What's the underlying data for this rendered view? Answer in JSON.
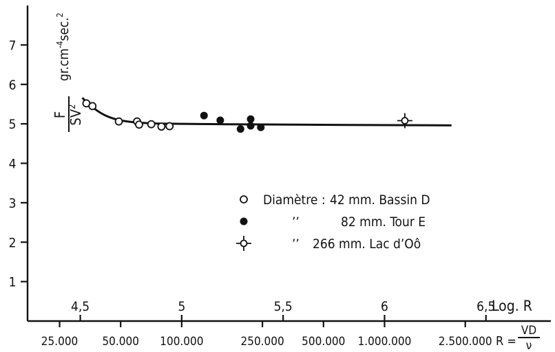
{
  "chart_data": {
    "type": "scatter",
    "title": "",
    "ylabel": {
      "fraction_num": "F",
      "fraction_den": "SV",
      "fraction_den_sup": "2",
      "units": "gr.cm",
      "units_sup1": "-4",
      "units_mid": "sec.",
      "units_sup2": "2"
    },
    "x_top_label": "Log. R",
    "x_bottom_label": {
      "prefix": "R =",
      "num": "VD",
      "den": "ν"
    },
    "xlim": [
      4.24,
      6.82
    ],
    "ylim": [
      0,
      8
    ],
    "y_ticks": [
      "1",
      "2",
      "3",
      "4",
      "5",
      "6",
      "7"
    ],
    "x_top_ticks": [
      {
        "value": 4.5,
        "label": "4,5"
      },
      {
        "value": 5.0,
        "label": "5"
      },
      {
        "value": 5.5,
        "label": "5,5"
      },
      {
        "value": 6.0,
        "label": "6"
      },
      {
        "value": 6.5,
        "label": "6,5"
      }
    ],
    "x_bottom_ticks": [
      {
        "value": 4.398,
        "label": "25.000"
      },
      {
        "value": 4.699,
        "label": "50.000"
      },
      {
        "value": 5.0,
        "label": "100.000"
      },
      {
        "value": 5.398,
        "label": "250.000"
      },
      {
        "value": 5.699,
        "label": "500.000"
      },
      {
        "value": 6.0,
        "label": "1.000.000"
      },
      {
        "value": 6.398,
        "label": "2.500.000"
      }
    ],
    "series": [
      {
        "marker": "open-circle",
        "legend_name": "Diamètre :",
        "legend_value": "42 mm. Bassin D",
        "points": [
          [
            4.53,
            5.52
          ],
          [
            4.56,
            5.45
          ],
          [
            4.69,
            5.06
          ],
          [
            4.78,
            5.06
          ],
          [
            4.79,
            4.98
          ],
          [
            4.85,
            4.99
          ],
          [
            4.9,
            4.93
          ],
          [
            4.94,
            4.94
          ]
        ]
      },
      {
        "marker": "filled-circle",
        "legend_name": "’’",
        "legend_value": "82 mm. Tour E",
        "points": [
          [
            5.11,
            5.21
          ],
          [
            5.19,
            5.09
          ],
          [
            5.29,
            4.87
          ],
          [
            5.34,
            5.12
          ],
          [
            5.34,
            4.95
          ],
          [
            5.39,
            4.91
          ]
        ]
      },
      {
        "marker": "diamond-cross",
        "legend_name": "’’",
        "legend_value": "266 mm. Lac d’Oô",
        "points": [
          [
            6.1,
            5.08
          ]
        ]
      }
    ],
    "fit_curve": [
      [
        4.51,
        5.66
      ],
      [
        4.55,
        5.46
      ],
      [
        4.6,
        5.27
      ],
      [
        4.65,
        5.15
      ],
      [
        4.71,
        5.07
      ],
      [
        4.8,
        5.02
      ],
      [
        4.95,
        5.0
      ],
      [
        5.5,
        4.98
      ],
      [
        6.0,
        4.97
      ],
      [
        6.33,
        4.96
      ]
    ],
    "grid": false,
    "legend_position": "center-right"
  }
}
